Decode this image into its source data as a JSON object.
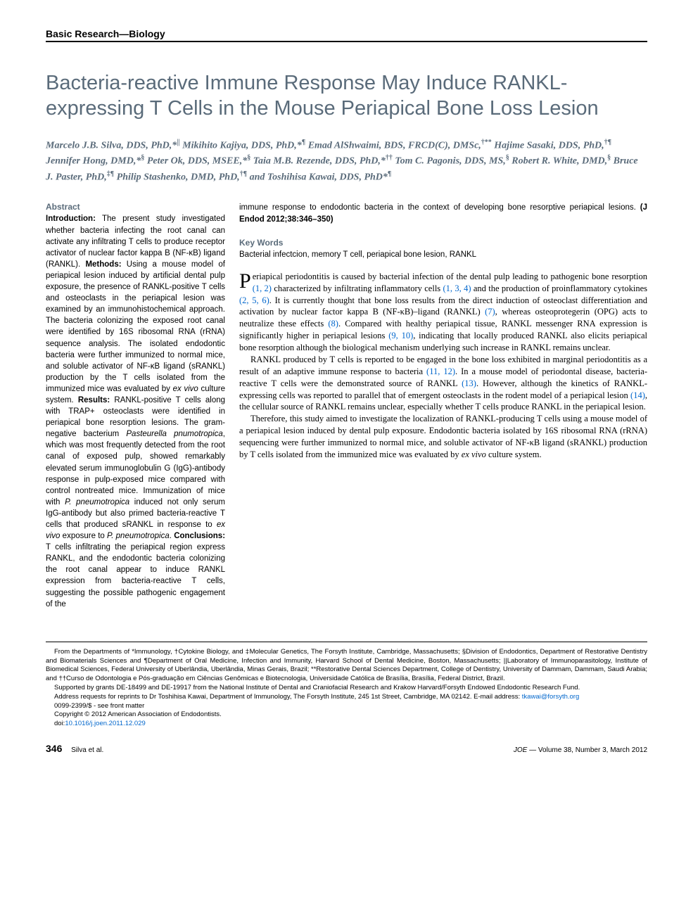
{
  "section_header": "Basic Research—Biology",
  "title": "Bacteria-reactive Immune Response May Induce RANKL-expressing T Cells in the Mouse Periapical Bone Loss Lesion",
  "authors_html": "Marcelo J.B. Silva, DDS, PhD,*<sup>||</sup> Mikihito Kajiya, DDS, PhD,*<sup>¶</sup> Emad AlShwaimi, BDS, FRCD(C), DMSc,<sup>†**</sup> Hajime Sasaki, DDS, PhD,<sup>†¶</sup> Jennifer Hong, DMD,*<sup>§</sup> Peter Ok, DDS, MSEE,*<sup>§</sup> Taia M.B. Rezende, DDS, PhD,*<sup>††</sup> Tom C. Pagonis, DDS, MS,<sup>§</sup> Robert R. White, DMD,<sup>§</sup> Bruce J. Paster, PhD,<sup>‡¶</sup> Philip Stashenko, DMD, PhD,<sup>†¶</sup> and Toshihisa Kawai, DDS, PhD*<sup>¶</sup>",
  "abstract": {
    "heading": "Abstract",
    "introduction_label": "Introduction:",
    "introduction": " The present study investigated whether bacteria infecting the root canal can activate any infiltrating T cells to produce receptor activator of nuclear factor kappa B (NF-κB) ligand (RANKL). ",
    "methods_label": "Methods:",
    "methods": " Using a mouse model of periapical lesion induced by artificial dental pulp exposure, the presence of RANKL-positive T cells and osteoclasts in the periapical lesion was examined by an immunohistochemical approach. The bacteria colonizing the exposed root canal were identified by 16S ribosomal RNA (rRNA) sequence analysis. The isolated endodontic bacteria were further immunized to normal mice, and soluble activator of NF-κB ligand (sRANKL) production by the T cells isolated from the immunized mice was evaluated by ex vivo culture system. ",
    "results_label": "Results:",
    "results": " RANKL-positive T cells along with TRAP+ osteoclasts were identified in periapical bone resorption lesions. The gram-negative bacterium Pasteurella pnumotropica, which was most frequently detected from the root canal of exposed pulp, showed remarkably elevated serum immunoglobulin G (IgG)-antibody response in pulp-exposed mice compared with control nontreated mice. Immunization of mice with P. pneumotropica induced not only serum IgG-antibody but also primed bacteria-reactive T cells that produced sRANKL in response to ex vivo exposure to P. pneumotropica. ",
    "conclusions_label": "Conclusions:",
    "conclusions": " T cells infiltrating the periapical region express RANKL, and the endodontic bacteria colonizing the root canal appear to induce RANKL expression from bacteria-reactive T cells, suggesting the possible pathogenic engagement of the"
  },
  "abstract_tail": "immune response to endodontic bacteria in the context of developing bone resorptive periapical lesions. ",
  "citation": "(J Endod 2012;38:346–350)",
  "keywords": {
    "heading": "Key Words",
    "text": "Bacterial infectcion, memory T cell, periapical bone lesion, RANKL"
  },
  "body": {
    "p1": "eriapical periodontitis is caused by bacterial infection of the dental pulp leading to pathogenic bone resorption (1, 2) characterized by infiltrating inflammatory cells (1, 3, 4) and the production of proinflammatory cytokines (2, 5, 6). It is currently thought that bone loss results from the direct induction of osteoclast differentiation and activation by nuclear factor kappa B (NF-κB)–ligand (RANKL) (7), whereas osteoprotegerin (OPG) acts to neutralize these effects (8). Compared with healthy periapical tissue, RANKL messenger RNA expression is significantly higher in periapical lesions (9, 10), indicating that locally produced RANKL also elicits periapical bone resorption although the biological mechanism underlying such increase in RANKL remains unclear.",
    "p2": "RANKL produced by T cells is reported to be engaged in the bone loss exhibited in marginal periodontitis as a result of an adaptive immune response to bacteria (11, 12). In a mouse model of periodontal disease, bacteria-reactive T cells were the demonstrated source of RANKL (13). However, although the kinetics of RANKL-expressing cells was reported to parallel that of emergent osteoclasts in the rodent model of a periapical lesion (14), the cellular source of RANKL remains unclear, especially whether T cells produce RANKL in the periapical lesion.",
    "p3": "Therefore, this study aimed to investigate the localization of RANKL-producing T cells using a mouse model of a periapical lesion induced by dental pulp exposure. Endodontic bacteria isolated by 16S ribosomal RNA (rRNA) sequencing were further immunized to normal mice, and soluble activator of NF-κB ligand (sRANKL) production by T cells isolated from the immunized mice was evaluated by ex vivo culture system."
  },
  "refs": {
    "r1": "(1, 2)",
    "r2": "(1, 3, 4)",
    "r3": "(2, 5, 6)",
    "r4": "(7)",
    "r5": "(8)",
    "r6": "(9, 10)",
    "r7": "(11, 12)",
    "r8": "(13)",
    "r9": "(14)"
  },
  "affiliations": "From the Departments of *Immunology, †Cytokine Biology, and ‡Molecular Genetics, The Forsyth Institute, Cambridge, Massachusetts; §Division of Endodontics, Department of Restorative Dentistry and Biomaterials Sciences and ¶Department of Oral Medicine, Infection and Immunity, Harvard School of Dental Medicine, Boston, Massachusetts; ||Laboratory of Immunoparasitology, Institute of Biomedical Sciences, Federal University of Uberlândia, Uberlândia, Minas Gerais, Brazil; **Restorative Dental Sciences Department, College of Dentistry, University of Dammam, Dammam, Saudi Arabia; and ††Curso de Odontologia e Pós-graduação em Ciências Genômicas e Biotecnologia, Universidade Católica de Brasília, Brasília, Federal District, Brazil.",
  "funding": "Supported by grants DE-18499 and DE-19917 from the National Institute of Dental and Craniofacial Research and Krakow Harvard/Forsyth Endowed Endodontic Research Fund.",
  "correspondence": "Address requests for reprints to Dr Toshihisa Kawai, Department of Immunology, The Forsyth Institute, 245 1st Street, Cambridge, MA 02142. E-mail address: ",
  "email": "tkawai@forsyth.org",
  "issn": "0099-2399/$ - see front matter",
  "copyright": "Copyright © 2012 American Association of Endodontists.",
  "doi_label": "doi:",
  "doi": "10.1016/j.joen.2011.12.029",
  "footer": {
    "page": "346",
    "running": "Silva et al.",
    "journal": "JOE",
    "issue": " — Volume 38, Number 3, March 2012"
  },
  "colors": {
    "heading_color": "#5a6b7a",
    "link_color": "#0066cc",
    "text_color": "#000000",
    "background": "#ffffff"
  }
}
